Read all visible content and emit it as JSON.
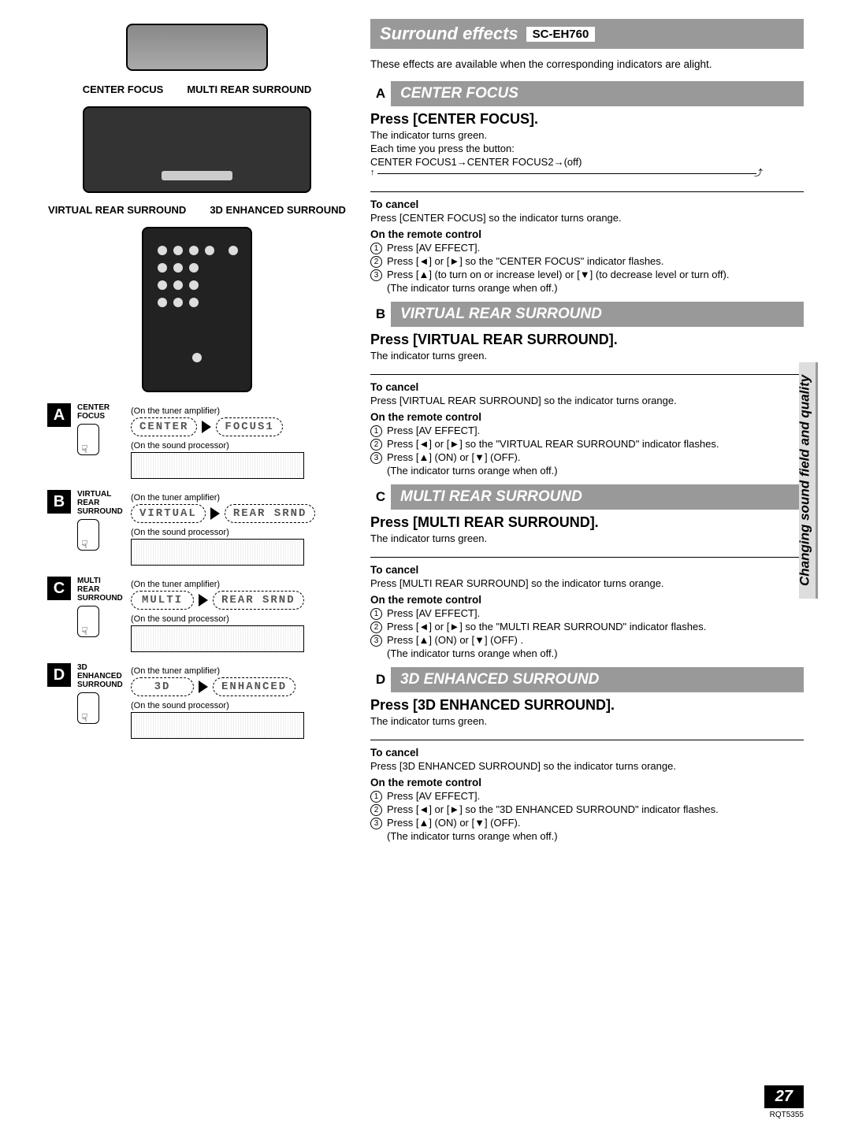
{
  "page": {
    "number": "27",
    "doc_code": "RQT5355",
    "side_tab": "Changing sound field and quality"
  },
  "main_title": {
    "text": "Surround effects",
    "model": "SC-EH760"
  },
  "intro": "These effects are available when the corresponding indicators are alight.",
  "diagram_labels": {
    "top_left": "CENTER FOCUS",
    "top_right": "MULTI REAR SURROUND",
    "bot_left": "VIRTUAL REAR SURROUND",
    "bot_right": "3D ENHANCED SURROUND"
  },
  "steps": [
    {
      "letter": "A",
      "btn1": "CENTER",
      "btn2": "FOCUS",
      "lcd1": "CENTER",
      "lcd2": "FOCUS1",
      "cap1": "(On the tuner amplifier)",
      "cap2": "(On the sound processor)"
    },
    {
      "letter": "B",
      "btn1": "VIRTUAL REAR",
      "btn2": "SURROUND",
      "lcd1": "VIRTUAL",
      "lcd2": "REAR SRND",
      "cap1": "(On the tuner amplifier)",
      "cap2": "(On the sound processor)"
    },
    {
      "letter": "C",
      "btn1": "MULTI REAR",
      "btn2": "SURROUND",
      "lcd1": "MULTI",
      "lcd2": "REAR SRND",
      "cap1": "(On the tuner amplifier)",
      "cap2": "(On the sound processor)"
    },
    {
      "letter": "D",
      "btn1": "3D ENHANCED",
      "btn2": "SURROUND",
      "lcd1": "3D",
      "lcd2": "ENHANCED",
      "cap1": "(On the tuner amplifier)",
      "cap2": "(On the sound processor)"
    }
  ],
  "sections": [
    {
      "letter": "A",
      "title": "CENTER FOCUS",
      "press": "Press [CENTER FOCUS].",
      "sub": "The indicator turns green.",
      "sub2": "Each time you press the button:",
      "cycle": "CENTER FOCUS1→CENTER FOCUS2→(off)",
      "cancel_h": "To cancel",
      "cancel": "Press [CENTER FOCUS] so the indicator turns orange.",
      "remote_h": "On the remote control",
      "r1": "Press [AV EFFECT].",
      "r2": "Press [◄] or [►] so the \"CENTER FOCUS\" indicator flashes.",
      "r3": "Press [▲] (to turn on or increase level) or [▼] (to decrease level or turn off).",
      "r3n": "(The indicator turns orange when off.)"
    },
    {
      "letter": "B",
      "title": "VIRTUAL REAR SURROUND",
      "press": "Press [VIRTUAL REAR SURROUND].",
      "sub": "The indicator turns green.",
      "cancel_h": "To cancel",
      "cancel": "Press [VIRTUAL REAR SURROUND] so the indicator turns orange.",
      "remote_h": "On the remote control",
      "r1": "Press [AV EFFECT].",
      "r2": "Press [◄] or [►] so the \"VIRTUAL REAR SURROUND\" indicator flashes.",
      "r3": "Press [▲] (ON) or [▼] (OFF).",
      "r3n": "(The indicator turns orange when off.)"
    },
    {
      "letter": "C",
      "title": "MULTI REAR SURROUND",
      "press": "Press [MULTI REAR SURROUND].",
      "sub": "The indicator turns green.",
      "cancel_h": "To cancel",
      "cancel": "Press [MULTI REAR SURROUND] so the indicator turns orange.",
      "remote_h": "On the remote control",
      "r1": "Press [AV EFFECT].",
      "r2": "Press [◄] or [►] so the \"MULTI REAR SURROUND\" indicator flashes.",
      "r3": "Press [▲] (ON) or [▼] (OFF) .",
      "r3n": "(The indicator turns orange when off.)"
    },
    {
      "letter": "D",
      "title": "3D ENHANCED SURROUND",
      "press": "Press [3D ENHANCED SURROUND].",
      "sub": "The indicator turns green.",
      "cancel_h": "To cancel",
      "cancel": "Press [3D ENHANCED SURROUND] so the indicator turns orange.",
      "remote_h": "On the remote control",
      "r1": "Press [AV EFFECT].",
      "r2": "Press [◄] or [►] so the \"3D ENHANCED SURROUND\" indicator flashes.",
      "r3": "Press [▲] (ON) or [▼] (OFF).",
      "r3n": "(The indicator turns orange when off.)"
    }
  ],
  "colors": {
    "header_bg": "#999999",
    "header_fg": "#ffffff",
    "text": "#000000"
  }
}
